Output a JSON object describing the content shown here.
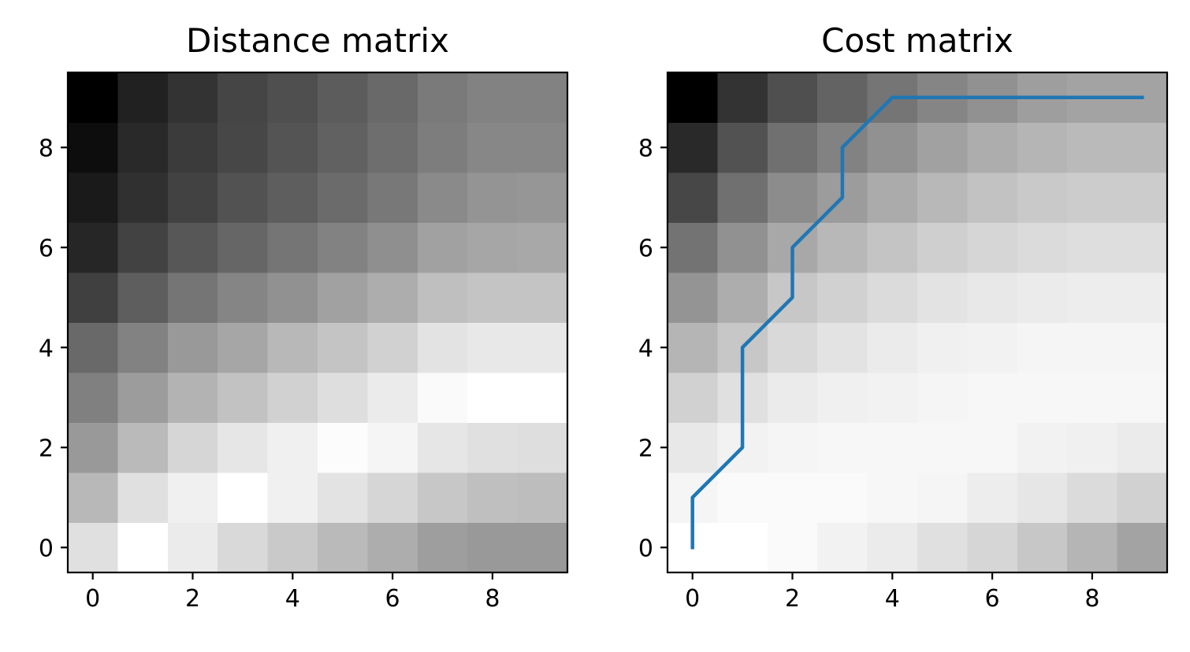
{
  "chart_data": [
    {
      "type": "heatmap",
      "title": "Distance matrix",
      "colormap": "gray",
      "origin": "lower",
      "x_ticks": [
        0,
        2,
        4,
        6,
        8
      ],
      "y_ticks": [
        0,
        2,
        4,
        6,
        8
      ],
      "xlim": [
        -0.5,
        9.5
      ],
      "ylim": [
        -0.5,
        9.5
      ],
      "grid": false,
      "values_by_row": [
        [
          0.88,
          1.0,
          0.92,
          0.85,
          0.79,
          0.73,
          0.68,
          0.62,
          0.6,
          0.6
        ],
        [
          0.72,
          0.88,
          0.94,
          1.0,
          0.94,
          0.89,
          0.84,
          0.78,
          0.75,
          0.74
        ],
        [
          0.6,
          0.73,
          0.84,
          0.9,
          0.94,
          0.99,
          0.96,
          0.9,
          0.88,
          0.87
        ],
        [
          0.5,
          0.61,
          0.7,
          0.76,
          0.82,
          0.87,
          0.92,
          0.98,
          1.0,
          1.0
        ],
        [
          0.41,
          0.51,
          0.6,
          0.65,
          0.72,
          0.77,
          0.82,
          0.89,
          0.91,
          0.91
        ],
        [
          0.25,
          0.37,
          0.46,
          0.52,
          0.57,
          0.63,
          0.68,
          0.75,
          0.77,
          0.77
        ],
        [
          0.15,
          0.26,
          0.34,
          0.4,
          0.46,
          0.51,
          0.56,
          0.63,
          0.65,
          0.66
        ],
        [
          0.1,
          0.19,
          0.26,
          0.32,
          0.37,
          0.42,
          0.47,
          0.54,
          0.58,
          0.59
        ],
        [
          0.05,
          0.16,
          0.23,
          0.28,
          0.33,
          0.38,
          0.43,
          0.49,
          0.53,
          0.53
        ],
        [
          0.0,
          0.13,
          0.2,
          0.27,
          0.31,
          0.36,
          0.41,
          0.48,
          0.51,
          0.51
        ]
      ]
    },
    {
      "type": "heatmap",
      "title": "Cost matrix",
      "colormap": "gray",
      "origin": "lower",
      "x_ticks": [
        0,
        2,
        4,
        6,
        8
      ],
      "y_ticks": [
        0,
        2,
        4,
        6,
        8
      ],
      "xlim": [
        -0.5,
        9.5
      ],
      "ylim": [
        -0.5,
        9.5
      ],
      "grid": false,
      "values_by_row": [
        [
          1.0,
          1.0,
          0.98,
          0.95,
          0.92,
          0.88,
          0.84,
          0.78,
          0.71,
          0.64
        ],
        [
          0.96,
          0.98,
          0.98,
          0.98,
          0.97,
          0.96,
          0.93,
          0.9,
          0.86,
          0.82
        ],
        [
          0.91,
          0.95,
          0.96,
          0.97,
          0.97,
          0.97,
          0.97,
          0.95,
          0.94,
          0.92
        ],
        [
          0.82,
          0.88,
          0.92,
          0.94,
          0.95,
          0.96,
          0.97,
          0.97,
          0.97,
          0.97
        ],
        [
          0.71,
          0.78,
          0.85,
          0.89,
          0.92,
          0.94,
          0.95,
          0.96,
          0.96,
          0.96
        ],
        [
          0.58,
          0.68,
          0.78,
          0.82,
          0.86,
          0.89,
          0.91,
          0.92,
          0.93,
          0.93
        ],
        [
          0.45,
          0.57,
          0.66,
          0.72,
          0.77,
          0.81,
          0.84,
          0.86,
          0.87,
          0.87
        ],
        [
          0.28,
          0.44,
          0.55,
          0.61,
          0.67,
          0.72,
          0.76,
          0.79,
          0.8,
          0.8
        ],
        [
          0.16,
          0.32,
          0.44,
          0.51,
          0.57,
          0.63,
          0.68,
          0.71,
          0.73,
          0.73
        ],
        [
          0.0,
          0.2,
          0.31,
          0.39,
          0.46,
          0.52,
          0.57,
          0.62,
          0.64,
          0.64
        ]
      ],
      "warping_path": {
        "color": "#1f77b4",
        "x": [
          0,
          0,
          1,
          1,
          2,
          2,
          3,
          3,
          4,
          5,
          6,
          7,
          8,
          9
        ],
        "y": [
          0,
          1,
          2,
          4,
          5,
          6,
          7,
          8,
          9,
          9,
          9,
          9,
          9,
          9
        ]
      }
    }
  ]
}
